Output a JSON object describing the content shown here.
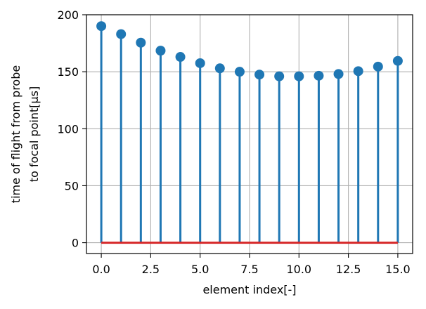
{
  "chart_data": {
    "type": "stem",
    "x": [
      0,
      1,
      2,
      3,
      4,
      5,
      6,
      7,
      8,
      9,
      10,
      11,
      12,
      13,
      14,
      15
    ],
    "y": [
      190,
      183,
      175.5,
      168.5,
      163,
      157.5,
      153,
      150,
      147.5,
      146,
      146,
      146.5,
      148,
      150.5,
      154.5,
      159.5
    ],
    "baseline": 0,
    "xlabel": "element index[-]",
    "ylabel_lines": [
      "time of flight from probe",
      "to focal point[μs]"
    ],
    "xlim": [
      -0.75,
      15.75
    ],
    "ylim": [
      -9.5,
      200
    ],
    "xticks": [
      0,
      2.5,
      5,
      7.5,
      10,
      12.5,
      15
    ],
    "xtick_labels": [
      "0.0",
      "2.5",
      "5.0",
      "7.5",
      "10.0",
      "12.5",
      "15.0"
    ],
    "yticks": [
      0,
      50,
      100,
      150,
      200
    ],
    "ytick_labels": [
      "0",
      "50",
      "100",
      "150",
      "200"
    ],
    "grid": true,
    "stem_color": "#1f77b4",
    "baseline_color": "#d62728",
    "grid_color": "#b0b0b0"
  }
}
